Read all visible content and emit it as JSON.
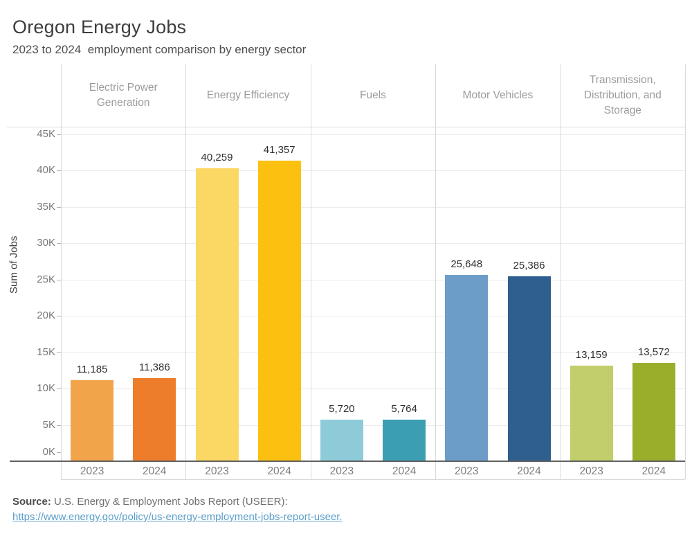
{
  "header": {
    "title": "Oregon Energy Jobs",
    "subtitle": "2023 to 2024  employment comparison by energy sector"
  },
  "chart_data": {
    "type": "bar",
    "title": "Oregon Energy Jobs",
    "subtitle": "2023 to 2024  employment comparison by energy sector",
    "ylabel": "Sum of Jobs",
    "ylim": [
      0,
      46000
    ],
    "grid": true,
    "yticks": [
      {
        "value": 0,
        "label": "0K"
      },
      {
        "value": 5000,
        "label": "5K"
      },
      {
        "value": 10000,
        "label": "10K"
      },
      {
        "value": 15000,
        "label": "15K"
      },
      {
        "value": 20000,
        "label": "20K"
      },
      {
        "value": 25000,
        "label": "25K"
      },
      {
        "value": 30000,
        "label": "30K"
      },
      {
        "value": 35000,
        "label": "35K"
      },
      {
        "value": 40000,
        "label": "40K"
      },
      {
        "value": 45000,
        "label": "45K"
      }
    ],
    "categories": [
      "2023",
      "2024"
    ],
    "groups": [
      {
        "label": "Electric Power Generation",
        "values": [
          11185,
          11386
        ],
        "value_labels": [
          "11,185",
          "11,386"
        ],
        "colors": [
          "#F2A44A",
          "#ED7D2B"
        ]
      },
      {
        "label": "Energy Efficiency",
        "values": [
          40259,
          41357
        ],
        "value_labels": [
          "40,259",
          "41,357"
        ],
        "colors": [
          "#FBD864",
          "#FCC110"
        ]
      },
      {
        "label": "Fuels",
        "values": [
          5720,
          5764
        ],
        "value_labels": [
          "5,720",
          "5,764"
        ],
        "colors": [
          "#8ECBD9",
          "#3B9EB3"
        ]
      },
      {
        "label": "Motor Vehicles",
        "values": [
          25648,
          25386
        ],
        "value_labels": [
          "25,648",
          "25,386"
        ],
        "colors": [
          "#6C9DC9",
          "#2E5F8E"
        ]
      },
      {
        "label": "Transmission, Distribution, and Storage",
        "values": [
          13159,
          13572
        ],
        "value_labels": [
          "13,159",
          "13,572"
        ],
        "colors": [
          "#C2CE6B",
          "#9BAE2C"
        ]
      }
    ]
  },
  "footer": {
    "source_label": "Source:",
    "source_text": " U.S. Energy & Employment Jobs Report (USEER):",
    "link_text": "https://www.energy.gov/policy/us-energy-employment-jobs-report-useer.",
    "link_color": "#5B9EC9"
  }
}
